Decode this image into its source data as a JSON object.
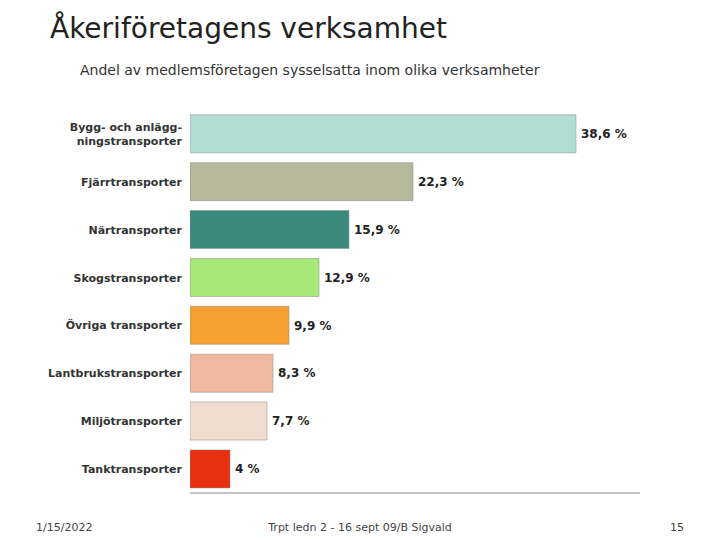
{
  "chart_data": {
    "type": "bar",
    "orientation": "horizontal",
    "title": "Åkeriföretagens verksamhet",
    "subtitle": "Andel av medlemsföretagen sysselsatta inom olika verksamheter",
    "categories": [
      "Bygg- och anlägg-\nningstransporter",
      "Fjärrtransporter",
      "Närtransporter",
      "Skogstransporter",
      "Övriga transporter",
      "Lantbrukstransporter",
      "Miljötransporter",
      "Tanktransporter"
    ],
    "values": [
      38.6,
      22.3,
      15.9,
      12.9,
      9.9,
      8.3,
      7.7,
      4.0
    ],
    "value_labels": [
      "38,6 %",
      "22,3 %",
      "15,9 %",
      "12,9 %",
      "9,9 %",
      "8,3 %",
      "7,7 %",
      "4 %"
    ],
    "colors": [
      "#b2ddd4",
      "#b5b89a",
      "#3a8b7e",
      "#a8e878",
      "#f5a030",
      "#f0b8a0",
      "#f0ddd0",
      "#e83010"
    ],
    "xlim": [
      0,
      45
    ],
    "data_labels": true,
    "tick_labels": "y",
    "grid": false,
    "annotations": [
      "1/15/2022",
      "Trpt ledn 2 - 16 sept 09/B Sigvald",
      "15"
    ]
  }
}
